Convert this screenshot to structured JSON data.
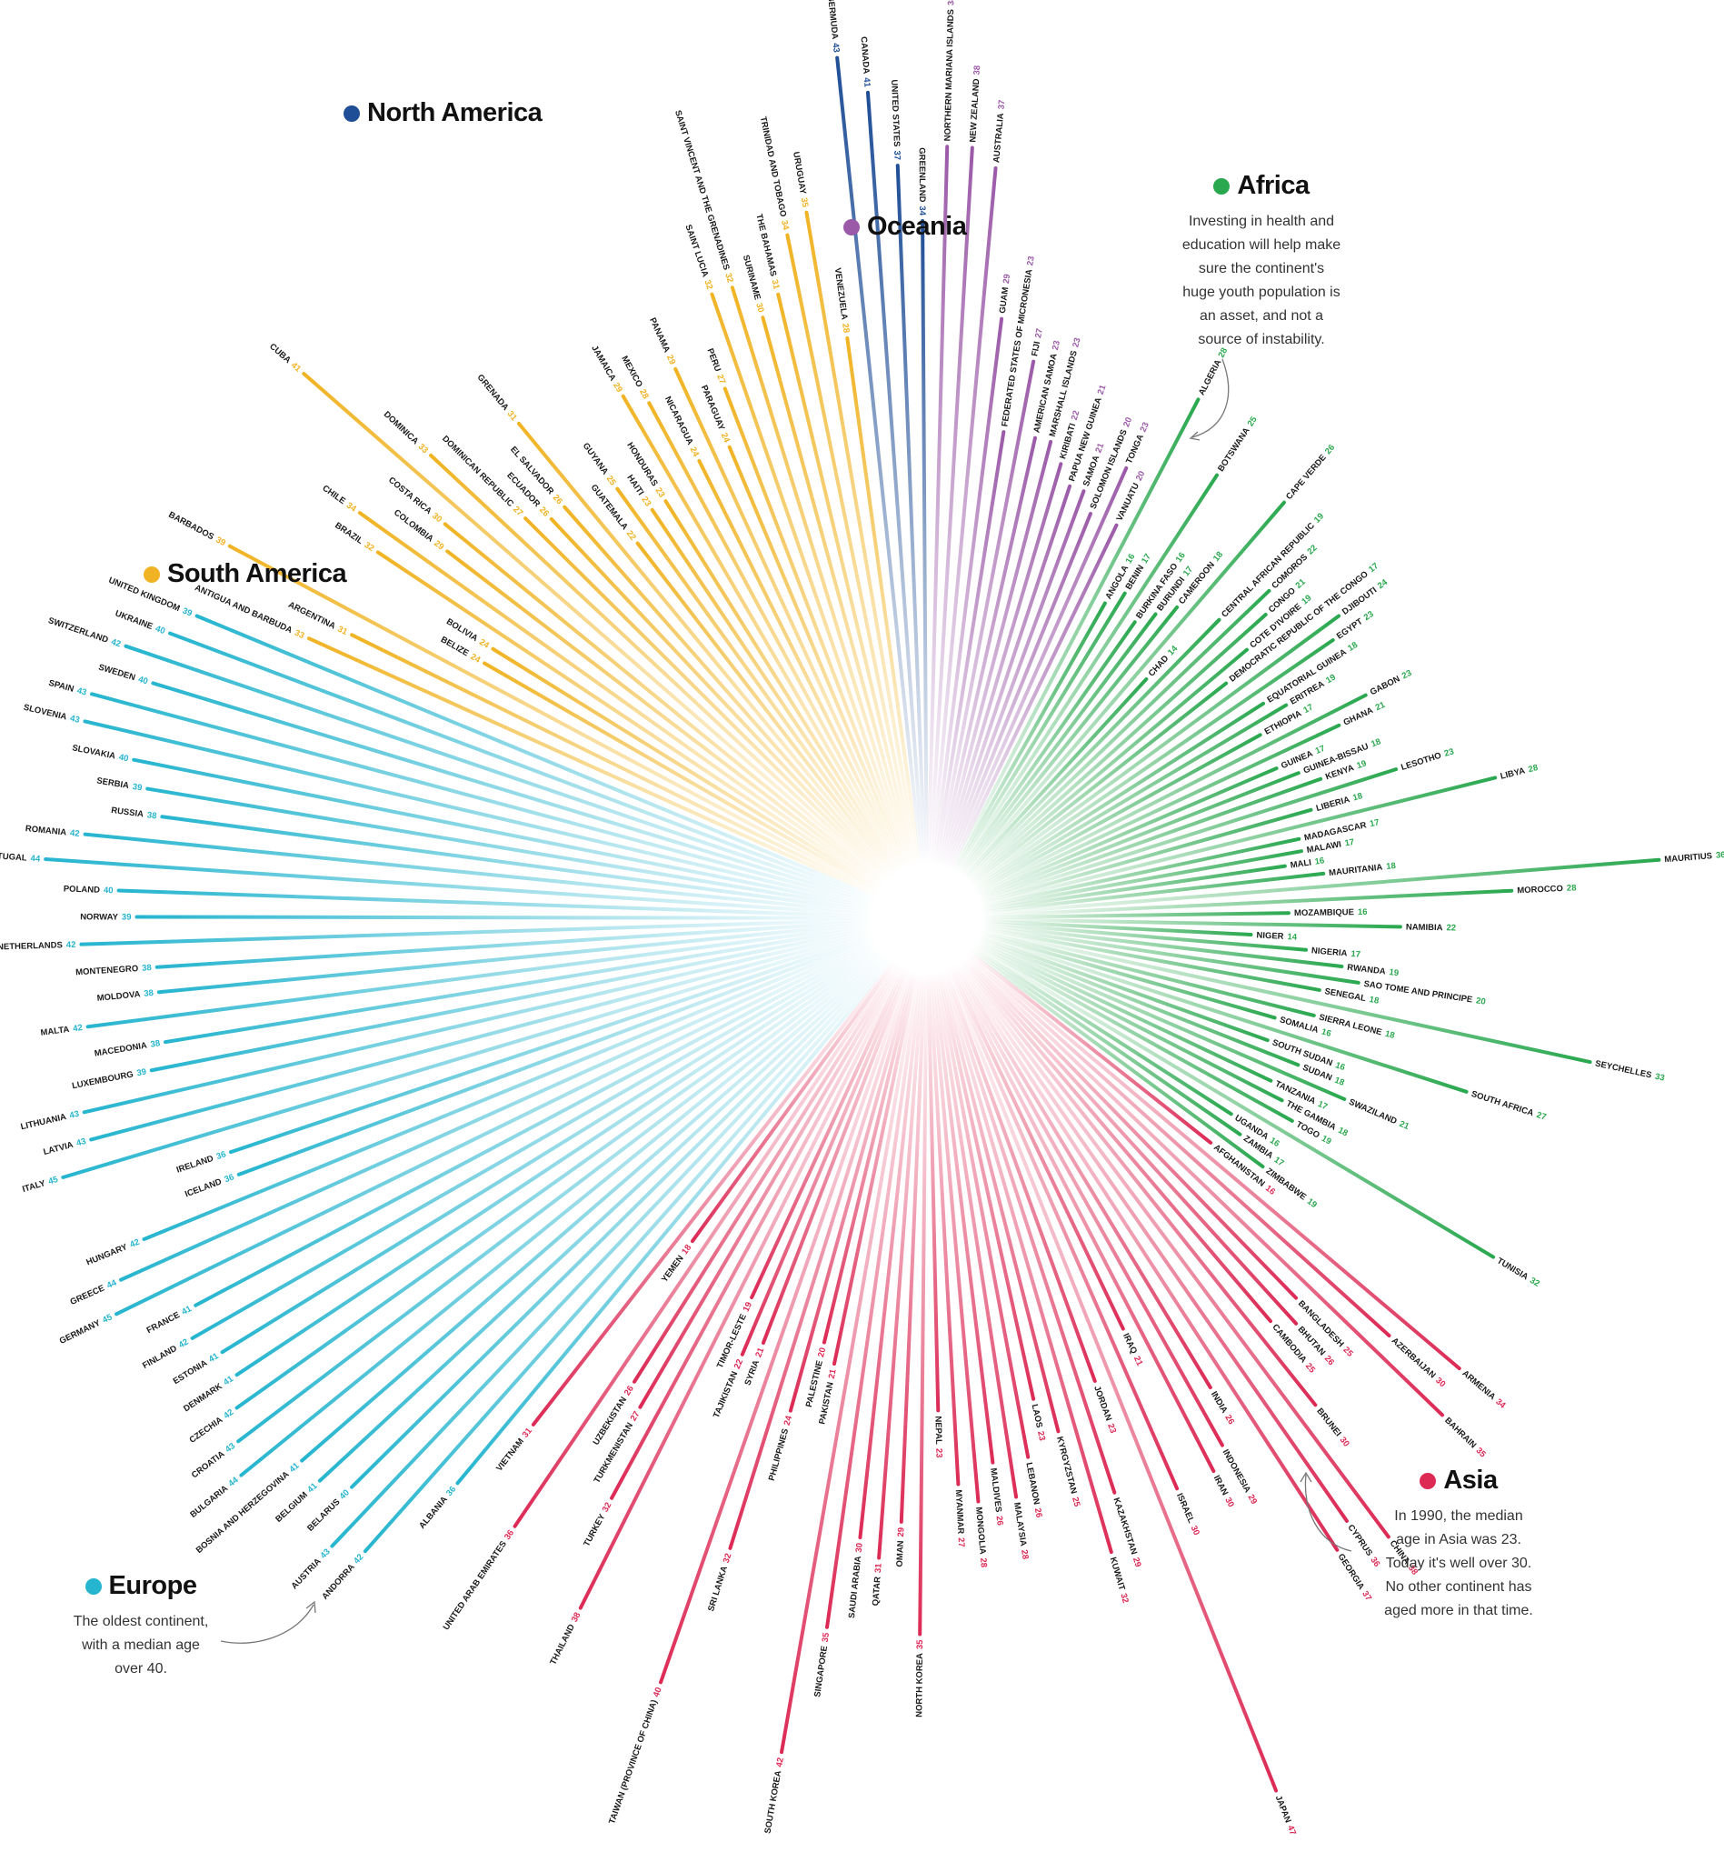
{
  "regions": [
    {
      "key": "north_america",
      "name": "North America",
      "color": "#1f4e96",
      "note": ""
    },
    {
      "key": "oceania",
      "name": "Oceania",
      "color": "#9b5aa8",
      "note": ""
    },
    {
      "key": "africa",
      "name": "Africa",
      "color": "#2aa84f",
      "note": "Investing in health and\neducation will help make\nsure the continent's\nhuge youth population is\nan asset, and not a\nsource of instability."
    },
    {
      "key": "south_america",
      "name": "South America",
      "color": "#f0b323",
      "note": ""
    },
    {
      "key": "europe",
      "name": "Europe",
      "color": "#26b5cf",
      "note": "The oldest continent,\nwith a median age\nover 40."
    },
    {
      "key": "asia",
      "name": "Asia",
      "color": "#dc2a55",
      "note": "In 1990, the median\nage in Asia was 23.\nToday it's well over 30.\nNo other continent has\naged more in that time."
    }
  ],
  "chart_data": {
    "type": "radial-bar",
    "value_unit": "median age (years)",
    "groups": [
      {
        "region": "oceania",
        "points": [
          {
            "name": "NORTHERN MARIANA ISLANDS",
            "value": 38
          },
          {
            "name": "NEW ZEALAND",
            "value": 38
          },
          {
            "name": "AUSTRALIA",
            "value": 37
          },
          {
            "name": "GUAM",
            "value": 29
          },
          {
            "name": "FEDERATED STATES OF MICRONESIA",
            "value": 23
          },
          {
            "name": "FIJI",
            "value": 27
          },
          {
            "name": "AMERICAN SAMOA",
            "value": 23
          },
          {
            "name": "MARSHALL ISLANDS",
            "value": 23
          },
          {
            "name": "KIRIBATI",
            "value": 22
          },
          {
            "name": "PAPUA NEW GUINEA",
            "value": 21
          },
          {
            "name": "SAMOA",
            "value": 21
          },
          {
            "name": "SOLOMON ISLANDS",
            "value": 20
          },
          {
            "name": "TONGA",
            "value": 23
          },
          {
            "name": "VANUATU",
            "value": 20
          }
        ]
      },
      {
        "region": "africa",
        "points": [
          {
            "name": "ALGERIA",
            "value": 28
          },
          {
            "name": "ANGOLA",
            "value": 16
          },
          {
            "name": "BENIN",
            "value": 17
          },
          {
            "name": "BOTSWANA",
            "value": 25
          },
          {
            "name": "BURKINA FASO",
            "value": 16
          },
          {
            "name": "BURUNDI",
            "value": 17
          },
          {
            "name": "CAMEROON",
            "value": 18
          },
          {
            "name": "CAPE VERDE",
            "value": 26
          },
          {
            "name": "CHAD",
            "value": 14
          },
          {
            "name": "CENTRAL AFRICAN REPUBLIC",
            "value": 19
          },
          {
            "name": "COMOROS",
            "value": 22
          },
          {
            "name": "CONGO",
            "value": 21
          },
          {
            "name": "COTE D'IVOIRE",
            "value": 19
          },
          {
            "name": "DEMOCRATIC REPUBLIC OF THE CONGO",
            "value": 17
          },
          {
            "name": "DJIBOUTI",
            "value": 24
          },
          {
            "name": "EGYPT",
            "value": 23
          },
          {
            "name": "EQUATORIAL GUINEA",
            "value": 18
          },
          {
            "name": "ERITREA",
            "value": 19
          },
          {
            "name": "ETHIOPIA",
            "value": 17
          },
          {
            "name": "GABON",
            "value": 23
          },
          {
            "name": "GHANA",
            "value": 21
          },
          {
            "name": "GUINEA",
            "value": 17
          },
          {
            "name": "GUINEA-BISSAU",
            "value": 18
          },
          {
            "name": "KENYA",
            "value": 19
          },
          {
            "name": "LESOTHO",
            "value": 23
          },
          {
            "name": "LIBERIA",
            "value": 18
          },
          {
            "name": "LIBYA",
            "value": 28
          },
          {
            "name": "MADAGASCAR",
            "value": 17
          },
          {
            "name": "MALAWI",
            "value": 17
          },
          {
            "name": "MALI",
            "value": 16
          },
          {
            "name": "MAURITANIA",
            "value": 18
          },
          {
            "name": "MAURITIUS",
            "value": 36
          },
          {
            "name": "MOROCCO",
            "value": 28
          },
          {
            "name": "MOZAMBIQUE",
            "value": 16
          },
          {
            "name": "NAMIBIA",
            "value": 22
          },
          {
            "name": "NIGER",
            "value": 14
          },
          {
            "name": "NIGERIA",
            "value": 17
          },
          {
            "name": "RWANDA",
            "value": 19
          },
          {
            "name": "SAO TOME AND PRINCIPE",
            "value": 20
          },
          {
            "name": "SENEGAL",
            "value": 18
          },
          {
            "name": "SEYCHELLES",
            "value": 33
          },
          {
            "name": "SIERRA LEONE",
            "value": 18
          },
          {
            "name": "SOMALIA",
            "value": 16
          },
          {
            "name": "SOUTH AFRICA",
            "value": 27
          },
          {
            "name": "SOUTH SUDAN",
            "value": 16
          },
          {
            "name": "SUDAN",
            "value": 18
          },
          {
            "name": "SWAZILAND",
            "value": 21
          },
          {
            "name": "TANZANIA",
            "value": 17
          },
          {
            "name": "THE GAMBIA",
            "value": 18
          },
          {
            "name": "TOGO",
            "value": 19
          },
          {
            "name": "TUNISIA",
            "value": 32
          },
          {
            "name": "UGANDA",
            "value": 16
          },
          {
            "name": "ZAMBIA",
            "value": 17
          },
          {
            "name": "ZIMBABWE",
            "value": 19
          }
        ]
      },
      {
        "region": "asia",
        "points": [
          {
            "name": "AFGHANISTAN",
            "value": 16
          },
          {
            "name": "ARMENIA",
            "value": 34
          },
          {
            "name": "AZERBAIJAN",
            "value": 30
          },
          {
            "name": "BAHRAIN",
            "value": 35
          },
          {
            "name": "BANGLADESH",
            "value": 25
          },
          {
            "name": "BHUTAN",
            "value": 26
          },
          {
            "name": "CAMBODIA",
            "value": 25
          },
          {
            "name": "BRUNEI",
            "value": 30
          },
          {
            "name": "CHINA",
            "value": 38
          },
          {
            "name": "CYPRUS",
            "value": 36
          },
          {
            "name": "GEORGIA",
            "value": 37
          },
          {
            "name": "INDIA",
            "value": 26
          },
          {
            "name": "INDONESIA",
            "value": 29
          },
          {
            "name": "IRAN",
            "value": 30
          },
          {
            "name": "IRAQ",
            "value": 21
          },
          {
            "name": "ISRAEL",
            "value": 30
          },
          {
            "name": "JAPAN",
            "value": 47
          },
          {
            "name": "JORDAN",
            "value": 23
          },
          {
            "name": "KAZAKHSTAN",
            "value": 29
          },
          {
            "name": "KUWAIT",
            "value": 32
          },
          {
            "name": "KYRGYZSTAN",
            "value": 25
          },
          {
            "name": "LAOS",
            "value": 23
          },
          {
            "name": "LEBANON",
            "value": 26
          },
          {
            "name": "MALAYSIA",
            "value": 28
          },
          {
            "name": "MALDIVES",
            "value": 26
          },
          {
            "name": "MONGOLIA",
            "value": 28
          },
          {
            "name": "MYANMAR",
            "value": 27
          },
          {
            "name": "NEPAL",
            "value": 23
          },
          {
            "name": "NORTH KOREA",
            "value": 35
          },
          {
            "name": "OMAN",
            "value": 29
          },
          {
            "name": "QATAR",
            "value": 31
          },
          {
            "name": "SAUDI ARABIA",
            "value": 30
          },
          {
            "name": "SINGAPORE",
            "value": 35
          },
          {
            "name": "SOUTH KOREA",
            "value": 42
          },
          {
            "name": "PAKISTAN",
            "value": 21
          },
          {
            "name": "PALESTINE",
            "value": 20
          },
          {
            "name": "PHILIPPINES",
            "value": 24
          },
          {
            "name": "SRI LANKA",
            "value": 32
          },
          {
            "name": "TAIWAN (PROVINCE OF CHINA)",
            "value": 40
          },
          {
            "name": "SYRIA",
            "value": 21
          },
          {
            "name": "TAJIKISTAN",
            "value": 22
          },
          {
            "name": "TIMOR-LESTE",
            "value": 19
          },
          {
            "name": "THAILAND",
            "value": 38
          },
          {
            "name": "TURKEY",
            "value": 32
          },
          {
            "name": "TURKMENISTAN",
            "value": 27
          },
          {
            "name": "UZBEKISTAN",
            "value": 26
          },
          {
            "name": "UNITED ARAB EMIRATES",
            "value": 36
          },
          {
            "name": "YEMEN",
            "value": 18
          },
          {
            "name": "VIETNAM",
            "value": 31
          }
        ]
      },
      {
        "region": "europe",
        "points": [
          {
            "name": "ALBANIA",
            "value": 36
          },
          {
            "name": "ANDORRA",
            "value": 42
          },
          {
            "name": "AUSTRIA",
            "value": 43
          },
          {
            "name": "BELARUS",
            "value": 40
          },
          {
            "name": "BELGIUM",
            "value": 41
          },
          {
            "name": "BOSNIA AND HERZEGOVINA",
            "value": 41
          },
          {
            "name": "BULGARIA",
            "value": 44
          },
          {
            "name": "CROATIA",
            "value": 43
          },
          {
            "name": "CZECHIA",
            "value": 42
          },
          {
            "name": "DENMARK",
            "value": 41
          },
          {
            "name": "ESTONIA",
            "value": 41
          },
          {
            "name": "FINLAND",
            "value": 42
          },
          {
            "name": "FRANCE",
            "value": 41
          },
          {
            "name": "GERMANY",
            "value": 45
          },
          {
            "name": "GREECE",
            "value": 44
          },
          {
            "name": "HUNGARY",
            "value": 42
          },
          {
            "name": "ICELAND",
            "value": 36
          },
          {
            "name": "IRELAND",
            "value": 36
          },
          {
            "name": "ITALY",
            "value": 45
          },
          {
            "name": "LATVIA",
            "value": 43
          },
          {
            "name": "LITHUANIA",
            "value": 43
          },
          {
            "name": "LUXEMBOURG",
            "value": 39
          },
          {
            "name": "MACEDONIA",
            "value": 38
          },
          {
            "name": "MALTA",
            "value": 42
          },
          {
            "name": "MOLDOVA",
            "value": 38
          },
          {
            "name": "MONTENEGRO",
            "value": 38
          },
          {
            "name": "NETHERLANDS",
            "value": 42
          },
          {
            "name": "NORWAY",
            "value": 39
          },
          {
            "name": "POLAND",
            "value": 40
          },
          {
            "name": "PORTUGAL",
            "value": 44
          },
          {
            "name": "ROMANIA",
            "value": 42
          },
          {
            "name": "RUSSIA",
            "value": 38
          },
          {
            "name": "SERBIA",
            "value": 39
          },
          {
            "name": "SLOVAKIA",
            "value": 40
          },
          {
            "name": "SLOVENIA",
            "value": 43
          },
          {
            "name": "SPAIN",
            "value": 43
          },
          {
            "name": "SWEDEN",
            "value": 40
          },
          {
            "name": "SWITZERLAND",
            "value": 42
          },
          {
            "name": "UKRAINE",
            "value": 40
          },
          {
            "name": "UNITED KINGDOM",
            "value": 39
          }
        ]
      },
      {
        "region": "south_america",
        "points": [
          {
            "name": "ANTIGUA AND BARBUDA",
            "value": 33
          },
          {
            "name": "ARGENTINA",
            "value": 31
          },
          {
            "name": "BARBADOS",
            "value": 39
          },
          {
            "name": "BELIZE",
            "value": 24
          },
          {
            "name": "BOLIVIA",
            "value": 24
          },
          {
            "name": "BRAZIL",
            "value": 32
          },
          {
            "name": "CHILE",
            "value": 34
          },
          {
            "name": "COLOMBIA",
            "value": 29
          },
          {
            "name": "COSTA RICA",
            "value": 30
          },
          {
            "name": "CUBA",
            "value": 41
          },
          {
            "name": "DOMINICA",
            "value": 33
          },
          {
            "name": "DOMINICAN REPUBLIC",
            "value": 27
          },
          {
            "name": "ECUADOR",
            "value": 26
          },
          {
            "name": "EL SALVADOR",
            "value": 26
          },
          {
            "name": "GRENADA",
            "value": 31
          },
          {
            "name": "GUATEMALA",
            "value": 22
          },
          {
            "name": "GUYANA",
            "value": 25
          },
          {
            "name": "HAITI",
            "value": 23
          },
          {
            "name": "HONDURAS",
            "value": 23
          },
          {
            "name": "JAMAICA",
            "value": 29
          },
          {
            "name": "MEXICO",
            "value": 28
          },
          {
            "name": "NICARAGUA",
            "value": 24
          },
          {
            "name": "PANAMA",
            "value": 29
          },
          {
            "name": "PARAGUAY",
            "value": 24
          },
          {
            "name": "PERU",
            "value": 27
          },
          {
            "name": "SAINT LUCIA",
            "value": 32
          },
          {
            "name": "SAINT VINCENT AND THE GRENADINES",
            "value": 32
          },
          {
            "name": "SURINAME",
            "value": 30
          },
          {
            "name": "THE BAHAMAS",
            "value": 31
          },
          {
            "name": "TRINIDAD AND TOBAGO",
            "value": 34
          },
          {
            "name": "URUGUAY",
            "value": 35
          },
          {
            "name": "VENEZUELA",
            "value": 28
          }
        ]
      },
      {
        "region": "north_america",
        "points": [
          {
            "name": "BERMUDA",
            "value": 43
          },
          {
            "name": "CANADA",
            "value": 41
          },
          {
            "name": "UNITED STATES",
            "value": 37
          },
          {
            "name": "GREENLAND",
            "value": 34
          }
        ]
      }
    ]
  }
}
